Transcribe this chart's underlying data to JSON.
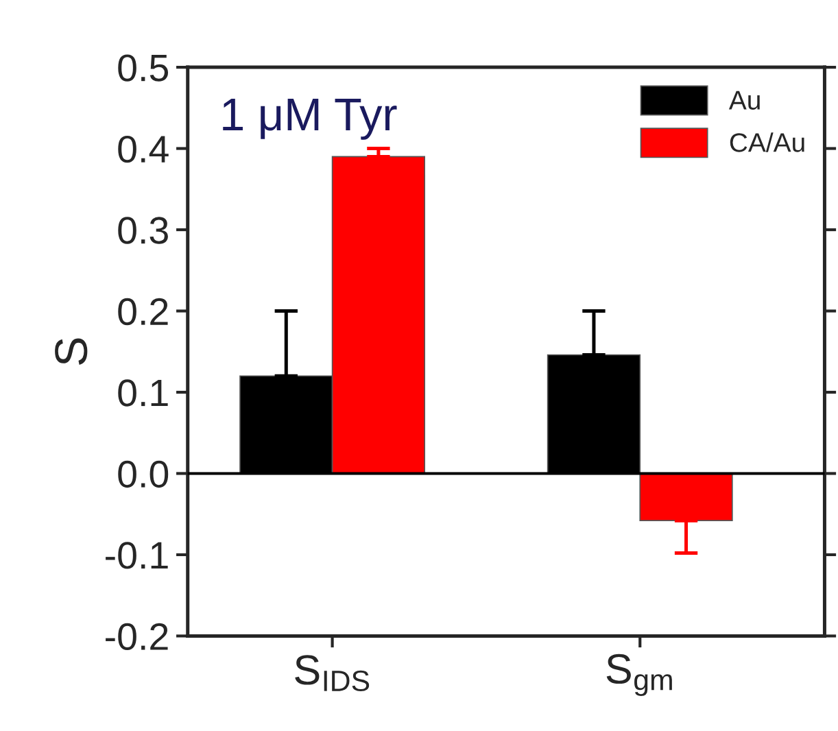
{
  "chart_data": {
    "type": "bar",
    "ylabel": "S",
    "annotations": [
      "1 μM Tyr"
    ],
    "categories": [
      "S$_{IDS}$",
      "S$_{gm}$"
    ],
    "series": [
      {
        "name": "Au",
        "color": "#000000",
        "values": [
          0.12,
          0.146
        ],
        "errors": [
          [
            0.12,
            0.2
          ],
          [
            0.146,
            0.2
          ]
        ]
      },
      {
        "name": "CA/Au",
        "color": "#ff0000",
        "values": [
          0.39,
          -0.058
        ],
        "errors": [
          [
            0.39,
            0.4
          ],
          [
            -0.098,
            -0.058
          ]
        ]
      }
    ],
    "ylim": [
      -0.2,
      0.5
    ],
    "yticks": [
      -0.2,
      -0.1,
      {
        "value": 0,
        "label": "0.0"
      },
      0.1,
      0.2,
      0.3,
      0.4,
      0.5
    ],
    "ref_lines": [
      {
        "axis": "y",
        "value": 0
      }
    ],
    "legend": "top right",
    "grid": false
  }
}
